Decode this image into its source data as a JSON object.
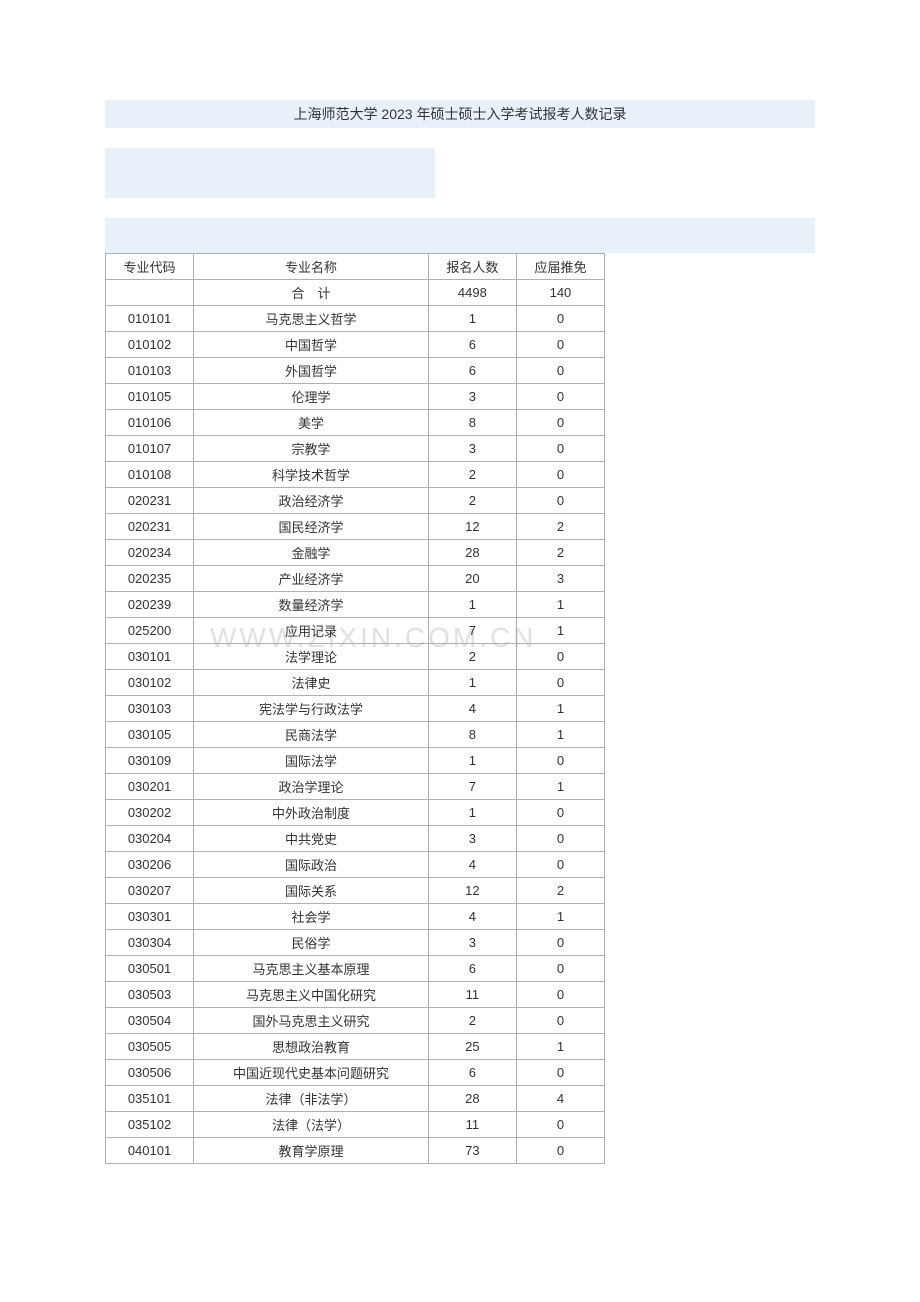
{
  "title": "上海师范大学 2023 年硕士硕士入学考试报考人数记录",
  "watermark": "WWW.ZIXIN.COM.CN",
  "table": {
    "headers": {
      "code": "专业代码",
      "name": "专业名称",
      "count": "报名人数",
      "rec": "应届推免"
    },
    "total_label": "合　计",
    "total_count": "4498",
    "total_rec": "140",
    "rows": [
      {
        "code": "010101",
        "name": "马克思主义哲学",
        "count": "1",
        "rec": "0"
      },
      {
        "code": "010102",
        "name": "中国哲学",
        "count": "6",
        "rec": "0"
      },
      {
        "code": "010103",
        "name": "外国哲学",
        "count": "6",
        "rec": "0"
      },
      {
        "code": "010105",
        "name": "伦理学",
        "count": "3",
        "rec": "0"
      },
      {
        "code": "010106",
        "name": "美学",
        "count": "8",
        "rec": "0"
      },
      {
        "code": "010107",
        "name": "宗教学",
        "count": "3",
        "rec": "0"
      },
      {
        "code": "010108",
        "name": "科学技术哲学",
        "count": "2",
        "rec": "0"
      },
      {
        "code": "020231",
        "name": "政治经济学",
        "count": "2",
        "rec": "0"
      },
      {
        "code": "020231",
        "name": "国民经济学",
        "count": "12",
        "rec": "2"
      },
      {
        "code": "020234",
        "name": "金融学",
        "count": "28",
        "rec": "2"
      },
      {
        "code": "020235",
        "name": "产业经济学",
        "count": "20",
        "rec": "3"
      },
      {
        "code": "020239",
        "name": "数量经济学",
        "count": "1",
        "rec": "1"
      },
      {
        "code": "025200",
        "name": "应用记录",
        "count": "7",
        "rec": "1"
      },
      {
        "code": "030101",
        "name": "法学理论",
        "count": "2",
        "rec": "0"
      },
      {
        "code": "030102",
        "name": "法律史",
        "count": "1",
        "rec": "0"
      },
      {
        "code": "030103",
        "name": "宪法学与行政法学",
        "count": "4",
        "rec": "1"
      },
      {
        "code": "030105",
        "name": "民商法学",
        "count": "8",
        "rec": "1"
      },
      {
        "code": "030109",
        "name": "国际法学",
        "count": "1",
        "rec": "0"
      },
      {
        "code": "030201",
        "name": "政治学理论",
        "count": "7",
        "rec": "1"
      },
      {
        "code": "030202",
        "name": "中外政治制度",
        "count": "1",
        "rec": "0"
      },
      {
        "code": "030204",
        "name": "中共党史",
        "count": "3",
        "rec": "0"
      },
      {
        "code": "030206",
        "name": "国际政治",
        "count": "4",
        "rec": "0"
      },
      {
        "code": "030207",
        "name": "国际关系",
        "count": "12",
        "rec": "2"
      },
      {
        "code": "030301",
        "name": "社会学",
        "count": "4",
        "rec": "1"
      },
      {
        "code": "030304",
        "name": "民俗学",
        "count": "3",
        "rec": "0"
      },
      {
        "code": "030501",
        "name": "马克思主义基本原理",
        "count": "6",
        "rec": "0"
      },
      {
        "code": "030503",
        "name": "马克思主义中国化研究",
        "count": "11",
        "rec": "0"
      },
      {
        "code": "030504",
        "name": "国外马克思主义研究",
        "count": "2",
        "rec": "0"
      },
      {
        "code": "030505",
        "name": "思想政治教育",
        "count": "25",
        "rec": "1"
      },
      {
        "code": "030506",
        "name": "中国近现代史基本问题研究",
        "count": "6",
        "rec": "0"
      },
      {
        "code": "035101",
        "name": "法律（非法学）",
        "count": "28",
        "rec": "4"
      },
      {
        "code": "035102",
        "name": "法律（法学）",
        "count": "11",
        "rec": "0"
      },
      {
        "code": "040101",
        "name": "教育学原理",
        "count": "73",
        "rec": "0"
      }
    ]
  }
}
